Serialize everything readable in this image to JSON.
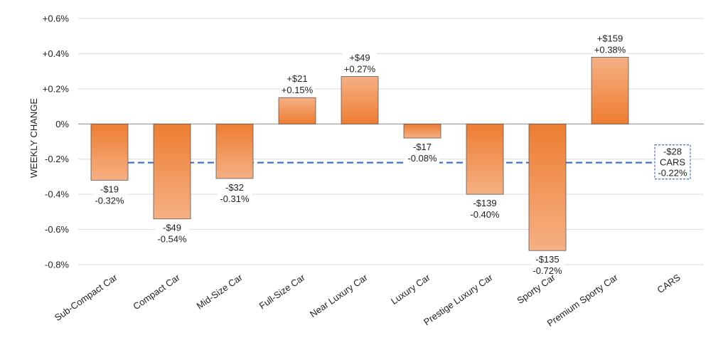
{
  "chart_data": {
    "type": "bar",
    "title": "",
    "xlabel": "",
    "ylabel": "WEEKLY CHANGE",
    "ylim": [
      -0.8,
      0.6
    ],
    "yticks": [
      0.6,
      0.4,
      0.2,
      0,
      -0.2,
      -0.4,
      -0.6,
      -0.8
    ],
    "ytick_labels": [
      "+0.6%",
      "+0.4%",
      "+0.2%",
      "0%",
      "-0.2%",
      "-0.4%",
      "-0.6%",
      "-0.8%"
    ],
    "grid": true,
    "categories": [
      "Sub-Compact Car",
      "Compact Car",
      "Mid-Size Car",
      "Full-Size Car",
      "Near Luxury Car",
      "Luxury Car",
      "Prestige Luxury Car",
      "Sporty Car",
      "Premium Sporty Car",
      "CARS"
    ],
    "values": [
      -0.32,
      -0.54,
      -0.31,
      0.15,
      0.27,
      -0.08,
      -0.4,
      -0.72,
      0.38,
      null
    ],
    "data_labels": [
      [
        "-$19",
        "-0.32%"
      ],
      [
        "-$49",
        "-0.54%"
      ],
      [
        "-$32",
        "-0.31%"
      ],
      [
        "+$21",
        "+0.15%"
      ],
      [
        "+$49",
        "+0.27%"
      ],
      [
        "-$17",
        "-0.08%"
      ],
      [
        "-$139",
        "-0.40%"
      ],
      [
        "-$135",
        "-0.72%"
      ],
      [
        "+$159",
        "+0.38%"
      ],
      []
    ],
    "reference_line": {
      "value": -0.22,
      "style": "dashed",
      "label": [
        "-$28",
        "CARS",
        "-0.22%"
      ]
    },
    "colors": {
      "bar_dark": "#ee7d31",
      "bar_light": "#f5b084",
      "bar_stroke": "#595959",
      "reference_line": "#4472c4",
      "grid": "#d9d9d9"
    }
  }
}
